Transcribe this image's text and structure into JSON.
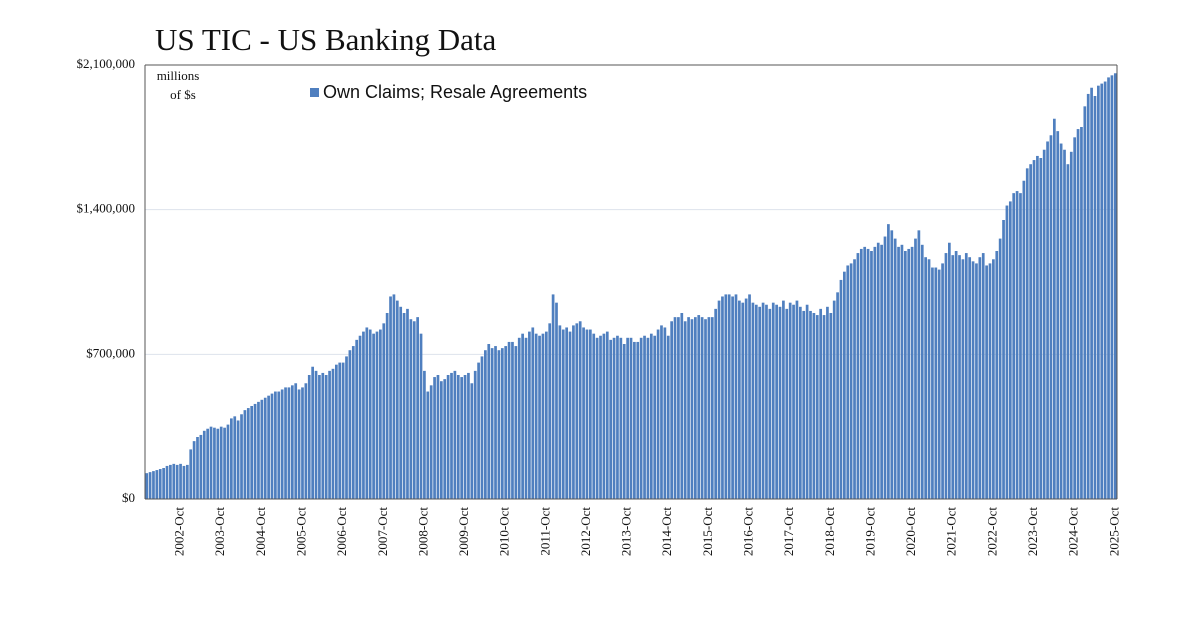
{
  "chart_data": {
    "type": "bar",
    "title": "US TIC - US Banking Data",
    "annotations": [
      "millions",
      "of $s"
    ],
    "legend": "upper left",
    "grid": true,
    "ylim": [
      0,
      2100000
    ],
    "yticks": [
      {
        "value": 0,
        "label": "$0"
      },
      {
        "value": 700000,
        "label": "$700,000"
      },
      {
        "value": 1400000,
        "label": "$1,400,000"
      },
      {
        "value": 2100000,
        "label": "$2,100,000"
      }
    ],
    "categories": [
      null,
      null,
      null,
      null,
      null,
      null,
      null,
      null,
      null,
      null,
      "2002-Oct",
      null,
      null,
      null,
      null,
      null,
      null,
      null,
      null,
      null,
      null,
      null,
      "2003-Oct",
      null,
      null,
      null,
      null,
      null,
      null,
      null,
      null,
      null,
      null,
      null,
      "2004-Oct",
      null,
      null,
      null,
      null,
      null,
      null,
      null,
      null,
      null,
      null,
      null,
      "2005-Oct",
      null,
      null,
      null,
      null,
      null,
      null,
      null,
      null,
      null,
      null,
      null,
      "2006-Oct",
      null,
      null,
      null,
      null,
      null,
      null,
      null,
      null,
      null,
      null,
      null,
      "2007-Oct",
      null,
      null,
      null,
      null,
      null,
      null,
      null,
      null,
      null,
      null,
      null,
      "2008-Oct",
      null,
      null,
      null,
      null,
      null,
      null,
      null,
      null,
      null,
      null,
      null,
      "2009-Oct",
      null,
      null,
      null,
      null,
      null,
      null,
      null,
      null,
      null,
      null,
      null,
      "2010-Oct",
      null,
      null,
      null,
      null,
      null,
      null,
      null,
      null,
      null,
      null,
      null,
      "2011-Oct",
      null,
      null,
      null,
      null,
      null,
      null,
      null,
      null,
      null,
      null,
      null,
      "2012-Oct",
      null,
      null,
      null,
      null,
      null,
      null,
      null,
      null,
      null,
      null,
      null,
      "2013-Oct",
      null,
      null,
      null,
      null,
      null,
      null,
      null,
      null,
      null,
      null,
      null,
      "2014-Oct",
      null,
      null,
      null,
      null,
      null,
      null,
      null,
      null,
      null,
      null,
      null,
      "2015-Oct",
      null,
      null,
      null,
      null,
      null,
      null,
      null,
      null,
      null,
      null,
      null,
      "2016-Oct",
      null,
      null,
      null,
      null,
      null,
      null,
      null,
      null,
      null,
      null,
      null,
      "2017-Oct",
      null,
      null,
      null,
      null,
      null,
      null,
      null,
      null,
      null,
      null,
      null,
      "2018-Oct",
      null,
      null,
      null,
      null,
      null,
      null,
      null,
      null,
      null,
      null,
      null,
      "2019-Oct",
      null,
      null,
      null,
      null,
      null,
      null,
      null,
      null,
      null,
      null,
      null,
      "2020-Oct",
      null,
      null,
      null,
      null,
      null,
      null,
      null,
      null,
      null,
      null,
      null,
      "2021-Oct",
      null,
      null,
      null,
      null,
      null,
      null,
      null,
      null,
      null,
      null,
      null,
      "2022-Oct",
      null,
      null,
      null,
      null,
      null,
      null,
      null,
      null,
      null,
      null,
      null,
      "2023-Oct",
      null,
      null,
      null,
      null,
      null,
      null,
      null,
      null,
      null,
      null,
      null,
      "2024-Oct",
      null,
      null,
      null,
      null,
      null,
      null,
      null,
      null,
      null,
      null,
      null,
      "2025-Oct"
    ],
    "series": [
      {
        "name": "Own Claims; Resale Agreements",
        "color": "#4f7fbf",
        "values": [
          125000,
          130000,
          135000,
          140000,
          145000,
          150000,
          160000,
          165000,
          170000,
          165000,
          170000,
          160000,
          165000,
          240000,
          280000,
          300000,
          310000,
          330000,
          340000,
          350000,
          345000,
          340000,
          350000,
          345000,
          360000,
          390000,
          400000,
          380000,
          410000,
          430000,
          440000,
          450000,
          460000,
          470000,
          480000,
          490000,
          500000,
          510000,
          520000,
          520000,
          530000,
          540000,
          540000,
          550000,
          560000,
          530000,
          540000,
          560000,
          600000,
          640000,
          620000,
          600000,
          610000,
          600000,
          620000,
          630000,
          650000,
          660000,
          660000,
          690000,
          720000,
          740000,
          770000,
          790000,
          810000,
          830000,
          820000,
          800000,
          810000,
          820000,
          850000,
          900000,
          980000,
          990000,
          960000,
          930000,
          900000,
          920000,
          870000,
          860000,
          880000,
          800000,
          620000,
          520000,
          550000,
          590000,
          600000,
          570000,
          580000,
          600000,
          610000,
          620000,
          600000,
          590000,
          600000,
          610000,
          560000,
          620000,
          660000,
          690000,
          720000,
          750000,
          730000,
          740000,
          720000,
          730000,
          740000,
          760000,
          760000,
          740000,
          780000,
          800000,
          780000,
          810000,
          830000,
          800000,
          790000,
          800000,
          810000,
          850000,
          990000,
          950000,
          840000,
          820000,
          830000,
          810000,
          840000,
          850000,
          860000,
          830000,
          820000,
          820000,
          800000,
          780000,
          790000,
          800000,
          810000,
          770000,
          780000,
          790000,
          780000,
          750000,
          780000,
          780000,
          760000,
          760000,
          780000,
          790000,
          780000,
          800000,
          790000,
          820000,
          840000,
          830000,
          790000,
          860000,
          880000,
          880000,
          900000,
          860000,
          880000,
          870000,
          880000,
          890000,
          880000,
          870000,
          880000,
          880000,
          920000,
          960000,
          980000,
          990000,
          990000,
          980000,
          990000,
          960000,
          950000,
          970000,
          990000,
          950000,
          940000,
          930000,
          950000,
          940000,
          920000,
          950000,
          940000,
          930000,
          960000,
          920000,
          950000,
          940000,
          960000,
          930000,
          910000,
          940000,
          910000,
          900000,
          890000,
          920000,
          890000,
          930000,
          900000,
          960000,
          1000000,
          1060000,
          1100000,
          1130000,
          1140000,
          1160000,
          1190000,
          1210000,
          1220000,
          1210000,
          1200000,
          1220000,
          1240000,
          1230000,
          1270000,
          1330000,
          1300000,
          1260000,
          1220000,
          1230000,
          1200000,
          1210000,
          1220000,
          1260000,
          1300000,
          1230000,
          1170000,
          1160000,
          1120000,
          1120000,
          1110000,
          1140000,
          1190000,
          1240000,
          1180000,
          1200000,
          1180000,
          1160000,
          1190000,
          1170000,
          1150000,
          1140000,
          1170000,
          1190000,
          1130000,
          1140000,
          1160000,
          1200000,
          1260000,
          1350000,
          1420000,
          1440000,
          1480000,
          1490000,
          1480000,
          1540000,
          1600000,
          1620000,
          1640000,
          1660000,
          1650000,
          1690000,
          1730000,
          1760000,
          1840000,
          1780000,
          1720000,
          1690000,
          1620000,
          1680000,
          1750000,
          1790000,
          1800000,
          1900000,
          1960000,
          1990000,
          1950000,
          2000000,
          2010000,
          2020000,
          2040000,
          2050000,
          2060000
        ]
      }
    ]
  }
}
